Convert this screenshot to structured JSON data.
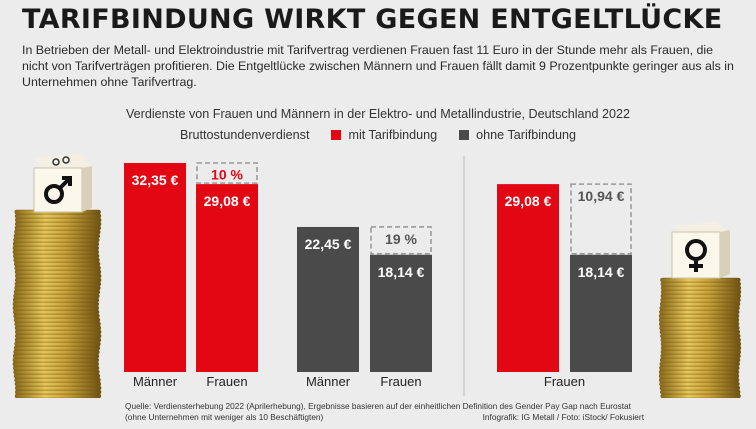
{
  "headline": "TARIFBINDUNG WIRKT GEGEN ENTGELTLÜCKE",
  "intro": "In Betrieben der Metall- und Elektroindustrie mit Tarifvertrag verdienen Frauen fast 11 Euro in der Stunde mehr als Frauen, die nicht von Tarifverträgen profitieren. Die Entgeltlücke zwischen Männern und Frauen fällt damit 9 Prozentpunkte geringer aus als in Unternehmen ohne Tarifvertrag.",
  "footer": {
    "source": "Quelle: Verdiensterhebung 2022 (Aprilerhebung), Ergebnisse basieren auf der einheitlichen Definition des Gender Pay Gap nach Eurostat (ohne Unternehmen mit weniger als 10 Beschäftigten)",
    "credit": "Infografik: IG Metall / Foto: iStock/ Fokusiert"
  },
  "icons": {
    "left_dice": "male-symbol-dice-icon",
    "right_dice": "female-symbol-dice-icon"
  },
  "colors": {
    "tarif": "#e30613",
    "ohne": "#4a4a4a",
    "gap_border": "#999999",
    "gap_text_tarif": "#e30613",
    "gap_text_ohne": "#555555"
  },
  "chart_data": {
    "type": "bar",
    "title": "Verdienste von Frauen und Männern in der Elektro- und Metallindustrie, Deutschland 2022",
    "ylabel": "Bruttostundenverdienst",
    "legend": [
      {
        "name": "mit Tarifbindung",
        "color": "#e30613"
      },
      {
        "name": "ohne Tarifbindung",
        "color": "#4a4a4a"
      }
    ],
    "ylim": [
      0,
      33
    ],
    "bars": [
      {
        "category": "Männer",
        "series": "mit Tarifbindung",
        "value": 32.35,
        "label": "32,35 €"
      },
      {
        "category": "Frauen",
        "series": "mit Tarifbindung",
        "value": 29.08,
        "label": "29,08 €",
        "gap_label": "10 %",
        "gap_to": 32.35
      },
      {
        "category": "Männer",
        "series": "ohne Tarifbindung",
        "value": 22.45,
        "label": "22,45 €"
      },
      {
        "category": "Frauen",
        "series": "ohne Tarifbindung",
        "value": 18.14,
        "label": "18,14 €",
        "gap_label": "19 %",
        "gap_to": 22.45
      },
      {
        "category": "Frauen",
        "series": "mit Tarifbindung",
        "value": 29.08,
        "label": "29,08 €"
      },
      {
        "category": "Frauen",
        "series": "ohne Tarifbindung",
        "value": 18.14,
        "label": "18,14 €",
        "gap_label": "10,94 €",
        "gap_to": 29.08
      }
    ]
  }
}
